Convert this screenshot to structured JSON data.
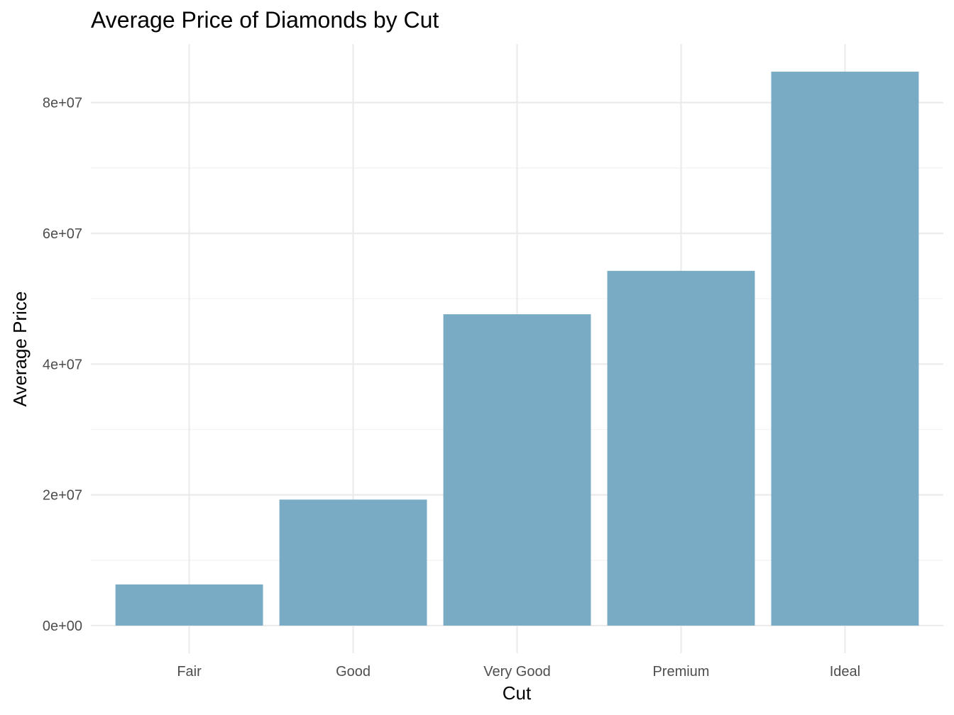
{
  "chart_data": {
    "type": "bar",
    "title": "Average Price of Diamonds by Cut",
    "xlabel": "Cut",
    "ylabel": "Average Price",
    "categories": [
      "Fair",
      "Good",
      "Very Good",
      "Premium",
      "Ideal"
    ],
    "values": [
      6295065,
      19275009,
      47624128,
      54267900,
      84732466
    ],
    "ylim": [
      -4236623,
      88969089
    ],
    "y_ticks": [
      0,
      20000000,
      40000000,
      60000000,
      80000000
    ],
    "y_tick_labels": [
      "0e+00",
      "2e+07",
      "4e+07",
      "6e+07",
      "8e+07"
    ],
    "y_minor_ticks": [
      10000000,
      30000000,
      50000000,
      70000000
    ],
    "bar_color": "#7aabc5",
    "grid": true,
    "legend": "none"
  }
}
